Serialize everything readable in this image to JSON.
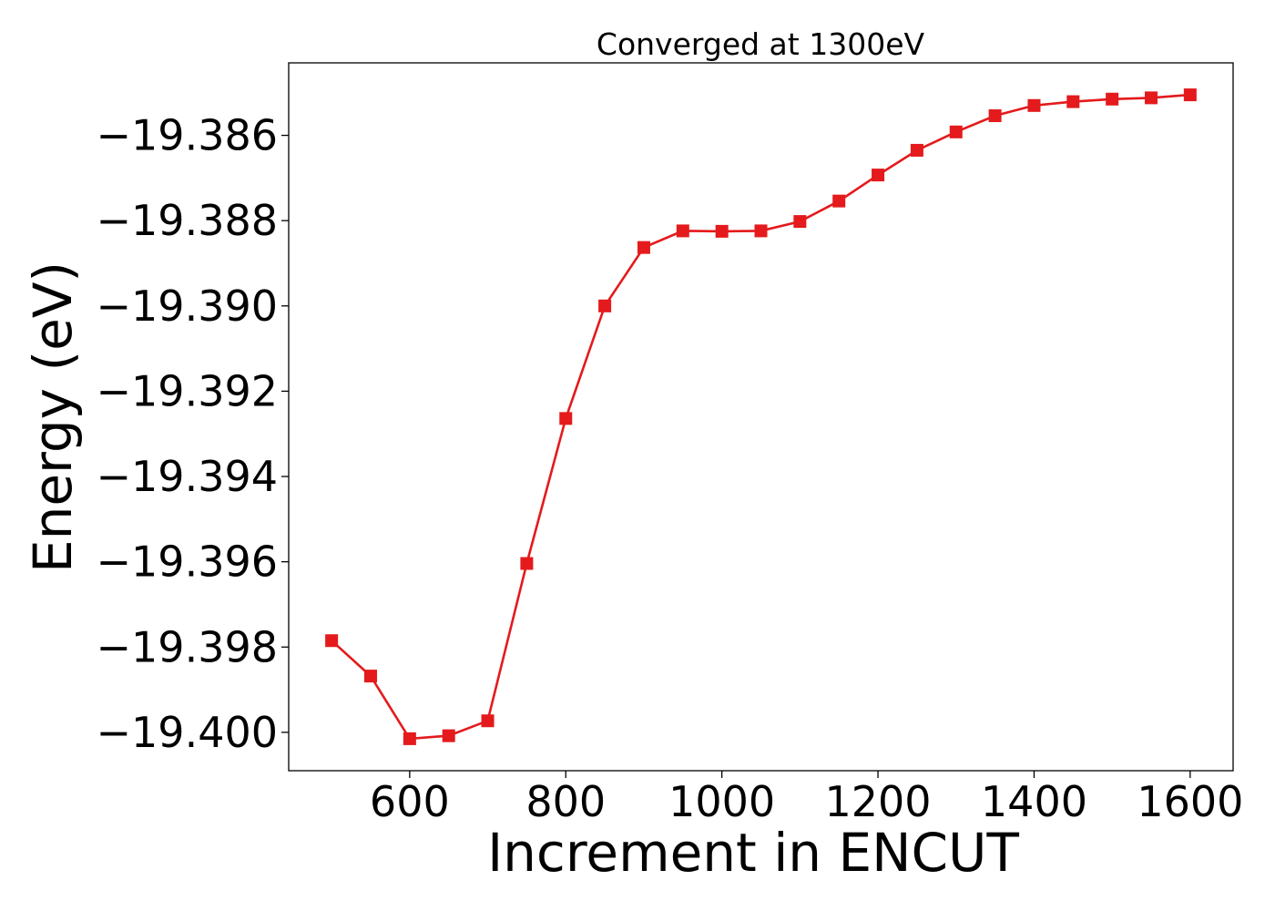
{
  "chart_data": {
    "type": "line",
    "title": "Converged at 1300eV",
    "xlabel": "Increment in ENCUT",
    "ylabel": "Energy (eV)",
    "xlim": [
      445,
      1655
    ],
    "ylim": [
      -19.4009,
      -19.3843
    ],
    "xticks": [
      600,
      800,
      1000,
      1200,
      1400,
      1600
    ],
    "xtick_labels": [
      "600",
      "800",
      "1000",
      "1200",
      "1400",
      "1600"
    ],
    "yticks": [
      -19.386,
      -19.388,
      -19.39,
      -19.392,
      -19.394,
      -19.396,
      -19.398,
      -19.4
    ],
    "ytick_labels": [
      "−19.386",
      "−19.388",
      "−19.390",
      "−19.392",
      "−19.394",
      "−19.396",
      "−19.398",
      "−19.400"
    ],
    "grid": false,
    "series": [
      {
        "color": "#e41a1c",
        "marker": "square",
        "x": [
          500,
          550,
          600,
          650,
          700,
          750,
          800,
          850,
          900,
          950,
          1000,
          1050,
          1100,
          1150,
          1200,
          1250,
          1300,
          1350,
          1400,
          1450,
          1500,
          1550,
          1600
        ],
        "y": [
          -19.39785,
          -19.39868,
          -19.40015,
          -19.40008,
          -19.39973,
          -19.39604,
          -19.39264,
          -19.39,
          -19.38863,
          -19.38824,
          -19.38825,
          -19.38824,
          -19.38802,
          -19.38754,
          -19.38693,
          -19.38635,
          -19.38592,
          -19.38554,
          -19.3853,
          -19.38521,
          -19.38515,
          -19.38512,
          -19.38505
        ]
      }
    ]
  }
}
